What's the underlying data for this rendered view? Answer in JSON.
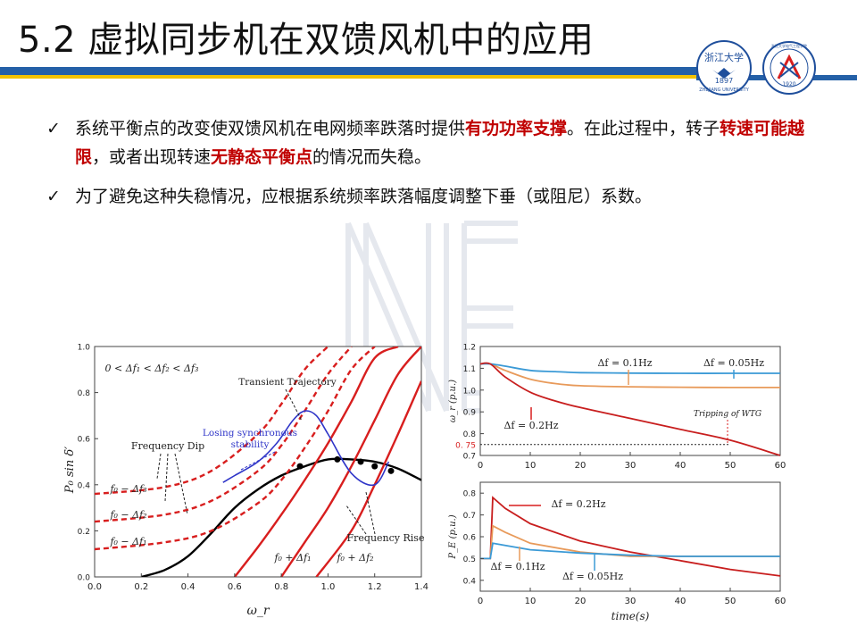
{
  "slide": {
    "title": "5.2 虚拟同步机在双馈风机中的应用"
  },
  "logos": {
    "left_text": "浙江大学",
    "left_year": "1897",
    "left_en": "ZHEJIANG UNIVERSITY",
    "right_text": "浙江大学电气工程学院",
    "right_year": "1920"
  },
  "bullets": [
    {
      "p1": "系统平衡点的改变使双馈风机在电网频率跌落时提供",
      "h1": "有功功率支撑",
      "p2": "。在此过程中，转子",
      "h2": "转速可能越限",
      "p3": "，或者出现转速",
      "h3": "无静态平衡点",
      "p4": "的情况而失稳。"
    },
    {
      "text": "为了避免这种失稳情况，应根据系统频率跌落幅度调整下垂（或阻尼）系数。"
    }
  ],
  "colors": {
    "accent_blue": "#2460a7",
    "accent_yellow": "#f2c200",
    "highlight_red": "#c00000",
    "curve_red": "#d81e1e",
    "curve_blue": "#2f35c8"
  },
  "chart_data": [
    {
      "type": "line",
      "title": "",
      "xlabel": "ω_r",
      "ylabel": "P₀ sin δ′",
      "xlim": [
        0,
        1.4
      ],
      "ylim": [
        0,
        1.0
      ],
      "xticks": [
        "0.0",
        "0.2",
        "0.4",
        "0.6",
        "0.8",
        "1.0",
        "1.2",
        "1.4"
      ],
      "yticks": [
        "0.0",
        "0.2",
        "0.4",
        "0.6",
        "0.8",
        "1.0"
      ],
      "series": [
        {
          "name": "power curve",
          "style": "black solid",
          "x": [
            0.2,
            0.3,
            0.4,
            0.5,
            0.6,
            0.7,
            0.8,
            0.9,
            1.0,
            1.1,
            1.2,
            1.3,
            1.4
          ],
          "y": [
            0.0,
            0.03,
            0.09,
            0.19,
            0.3,
            0.38,
            0.44,
            0.48,
            0.51,
            0.51,
            0.5,
            0.47,
            0.42
          ]
        },
        {
          "name": "f0+Δf2",
          "style": "red solid",
          "x": [
            0.95,
            1.1,
            1.2,
            1.3,
            1.4
          ],
          "y": [
            0.0,
            0.2,
            0.4,
            0.62,
            0.85
          ]
        },
        {
          "name": "f0+Δf1",
          "style": "red solid",
          "x": [
            0.8,
            0.9,
            1.0,
            1.1,
            1.2,
            1.3,
            1.4
          ],
          "y": [
            0.0,
            0.15,
            0.3,
            0.48,
            0.68,
            0.88,
            1.0
          ]
        },
        {
          "name": "f0",
          "style": "red solid",
          "x": [
            0.6,
            0.7,
            0.8,
            0.9,
            1.0,
            1.1,
            1.2,
            1.3
          ],
          "y": [
            0.0,
            0.13,
            0.27,
            0.42,
            0.58,
            0.76,
            0.95,
            1.0
          ]
        },
        {
          "name": "f0-Δf1",
          "style": "red dashed",
          "x": [
            0.0,
            0.3,
            0.5,
            0.7,
            0.8,
            0.9,
            1.0,
            1.1,
            1.2
          ],
          "y": [
            0.12,
            0.15,
            0.2,
            0.32,
            0.42,
            0.56,
            0.72,
            0.9,
            1.0
          ]
        },
        {
          "name": "f0-Δf2",
          "style": "red dashed",
          "x": [
            0.0,
            0.3,
            0.5,
            0.7,
            0.8,
            0.9,
            1.0,
            1.1
          ],
          "y": [
            0.24,
            0.27,
            0.33,
            0.46,
            0.57,
            0.72,
            0.88,
            1.0
          ]
        },
        {
          "name": "f0-Δf3",
          "style": "red dashed",
          "x": [
            0.0,
            0.3,
            0.5,
            0.7,
            0.8,
            0.9,
            1.0
          ],
          "y": [
            0.36,
            0.39,
            0.46,
            0.62,
            0.75,
            0.9,
            1.0
          ]
        },
        {
          "name": "trajectory",
          "style": "blue solid",
          "x": [
            1.26,
            1.2,
            1.1,
            1.0,
            0.95,
            0.9,
            0.85,
            0.78,
            0.7,
            0.6,
            0.55
          ],
          "y": [
            0.5,
            0.4,
            0.45,
            0.62,
            0.7,
            0.72,
            0.68,
            0.58,
            0.5,
            0.44,
            0.41
          ]
        }
      ],
      "markers": {
        "x": [
          0.88,
          1.04,
          1.14,
          1.2,
          1.27
        ],
        "y": [
          0.48,
          0.51,
          0.5,
          0.48,
          0.46
        ]
      },
      "annotations": [
        "0 < Δf₁ < Δf₂ < Δf₃",
        "Transient Trajectory",
        "Losing synchronous",
        "stability",
        "Frequency Dip",
        "Frequency Rise",
        "f₀ − Δf₃",
        "f₀ − Δf₂",
        "f₀ − Δf₁",
        "f₀ + Δf₁",
        "f₀ + Δf₂"
      ]
    },
    {
      "type": "line",
      "xlabel": "",
      "ylabel": "ω_r (p.u.)",
      "xlim": [
        0,
        60
      ],
      "ylim": [
        0.7,
        1.2
      ],
      "xticks": [
        "0",
        "10",
        "20",
        "30",
        "40",
        "50",
        "60"
      ],
      "yticks": [
        "1.2",
        "1.1",
        "1.0",
        "0.9",
        "0.8",
        "0.7"
      ],
      "extra_tick": "0. 75",
      "series": [
        {
          "name": "Δf = 0.1Hz",
          "color": "#e89a5a",
          "x": [
            0,
            2,
            5,
            10,
            15,
            20,
            30,
            40,
            50,
            60
          ],
          "y": [
            1.12,
            1.12,
            1.09,
            1.05,
            1.03,
            1.02,
            1.015,
            1.013,
            1.012,
            1.012
          ]
        },
        {
          "name": "Δf = 0.05Hz",
          "color": "#3b9ad6",
          "x": [
            0,
            2,
            5,
            10,
            15,
            20,
            30,
            40,
            50,
            60
          ],
          "y": [
            1.12,
            1.12,
            1.11,
            1.09,
            1.085,
            1.08,
            1.078,
            1.077,
            1.077,
            1.077
          ]
        },
        {
          "name": "Δf = 0.2Hz",
          "color": "#c81e1e",
          "x": [
            0,
            2,
            5,
            10,
            15,
            20,
            30,
            40,
            50,
            60
          ],
          "y": [
            1.12,
            1.12,
            1.06,
            0.99,
            0.95,
            0.92,
            0.87,
            0.82,
            0.77,
            0.7
          ]
        }
      ],
      "annotations": [
        "Δf = 0.1Hz",
        "Δf = 0.05Hz",
        "Δf = 0.2Hz",
        "Tripping of WTG"
      ]
    },
    {
      "type": "line",
      "xlabel": "time(s)",
      "ylabel": "P_E (p.u.)",
      "xlim": [
        0,
        60
      ],
      "ylim": [
        0.35,
        0.85
      ],
      "xticks": [
        "0",
        "10",
        "20",
        "30",
        "40",
        "50",
        "60"
      ],
      "yticks": [
        "0.8",
        "0.7",
        "0.6",
        "0.5",
        "0.4"
      ],
      "series": [
        {
          "name": "Δf = 0.2Hz",
          "color": "#c81e1e",
          "x": [
            0,
            2,
            2.5,
            5,
            10,
            20,
            30,
            40,
            50,
            60
          ],
          "y": [
            0.5,
            0.5,
            0.78,
            0.73,
            0.66,
            0.58,
            0.53,
            0.49,
            0.45,
            0.42
          ]
        },
        {
          "name": "Δf = 0.1Hz",
          "color": "#e89a5a",
          "x": [
            0,
            2,
            2.5,
            5,
            10,
            20,
            30,
            40,
            50,
            60
          ],
          "y": [
            0.5,
            0.5,
            0.65,
            0.62,
            0.57,
            0.53,
            0.51,
            0.51,
            0.51,
            0.51
          ]
        },
        {
          "name": "Δf = 0.05Hz",
          "color": "#3b9ad6",
          "x": [
            0,
            2,
            2.5,
            5,
            10,
            20,
            30,
            40,
            50,
            60
          ],
          "y": [
            0.5,
            0.5,
            0.57,
            0.56,
            0.54,
            0.525,
            0.515,
            0.51,
            0.51,
            0.51
          ]
        }
      ],
      "annotations": [
        "Δf = 0.2Hz",
        "Δf = 0.1Hz",
        "Δf = 0.05Hz"
      ]
    }
  ]
}
